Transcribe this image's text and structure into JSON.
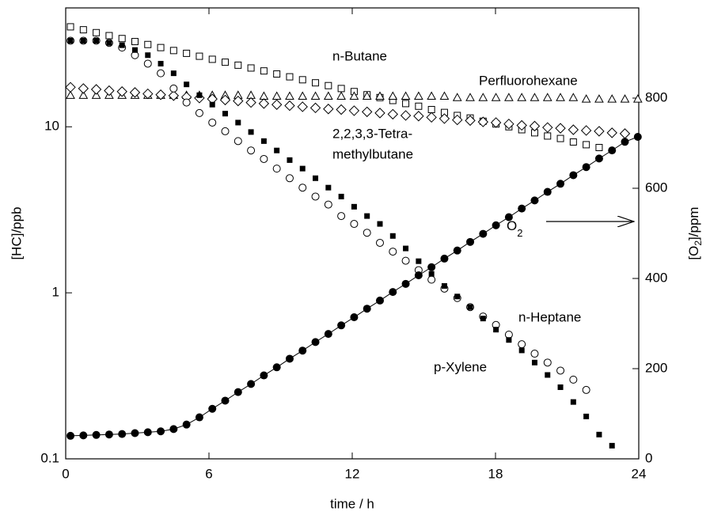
{
  "chart_data": {
    "type": "scatter",
    "x_label": "time / h",
    "y_label": "[HC]/ppb",
    "y2_label_parts": [
      "[O",
      "2",
      "]/ppm"
    ],
    "xlim": [
      0,
      24
    ],
    "xticks": [
      0,
      6,
      12,
      18,
      24
    ],
    "ylim": [
      0.1,
      52
    ],
    "yticks": [
      0.1,
      1,
      10
    ],
    "log_y": true,
    "y2lim": [
      0,
      1000
    ],
    "y2ticks": [
      0,
      200,
      400,
      600,
      800
    ],
    "x": [
      0.2,
      0.74,
      1.28,
      1.82,
      2.36,
      2.9,
      3.44,
      3.98,
      4.52,
      5.06,
      5.6,
      6.14,
      6.68,
      7.22,
      7.76,
      8.3,
      8.84,
      9.38,
      9.92,
      10.46,
      11,
      11.54,
      12.08,
      12.62,
      13.16,
      13.7,
      14.24,
      14.78,
      15.32,
      15.86,
      16.4,
      16.94,
      17.48,
      18.02,
      18.56,
      19.1,
      19.64,
      20.18,
      20.72,
      21.26,
      21.8,
      22.34,
      22.88,
      23.42,
      23.96
    ],
    "series": [
      {
        "name": "n-Butane",
        "color": "#000000",
        "marker": "square-open",
        "values": [
          40,
          38.4,
          36.9,
          35.4,
          34.0,
          32.6,
          31.3,
          30.0,
          28.8,
          27.7,
          26.6,
          25.5,
          24.5,
          23.5,
          22.6,
          21.7,
          20.8,
          20.0,
          19.2,
          18.4,
          17.7,
          17.0,
          16.3,
          15.6,
          15.0,
          14.4,
          13.8,
          13.3,
          12.7,
          12.2,
          11.7,
          11.3,
          10.8,
          10.4,
          10.0,
          9.6,
          9.2,
          8.8,
          8.5,
          8.1,
          7.8,
          7.5,
          null,
          null,
          null
        ]
      },
      {
        "name": "Perfluorohexane",
        "color": "#000000",
        "marker": "triangle-open",
        "values": [
          15.5,
          15.5,
          15.5,
          15.5,
          15.5,
          15.5,
          15.5,
          15.5,
          15.5,
          15.5,
          15.5,
          15.5,
          15.5,
          15.5,
          15.5,
          15.3,
          15.3,
          15.3,
          15.3,
          15.3,
          15.3,
          15.3,
          15.3,
          15.3,
          15.3,
          15.3,
          15.3,
          15.3,
          15.3,
          15.3,
          15.0,
          15.0,
          15.0,
          15.0,
          15.0,
          15.0,
          15.0,
          15.0,
          15.0,
          15.0,
          14.7,
          14.7,
          14.7,
          14.7,
          14.7
        ]
      },
      {
        "name_lines": [
          "2,2,3,3-Tetra-",
          "methylbutane"
        ],
        "color": "#000000",
        "marker": "diamond-open",
        "values": [
          17.3,
          17.0,
          16.8,
          16.5,
          16.3,
          16.1,
          15.8,
          15.6,
          15.4,
          15.1,
          14.9,
          14.7,
          14.5,
          14.3,
          14.0,
          13.8,
          13.6,
          13.4,
          13.2,
          13.0,
          12.8,
          12.7,
          12.5,
          12.3,
          12.1,
          11.9,
          11.7,
          11.6,
          11.4,
          11.2,
          11.0,
          10.9,
          10.7,
          10.6,
          10.4,
          10.2,
          10.1,
          9.9,
          9.8,
          9.6,
          9.5,
          9.4,
          9.2,
          9.1,
          null
        ]
      },
      {
        "name": "n-Heptane",
        "color": "#000000",
        "marker": "circle-open",
        "values": [
          33,
          33,
          33,
          32,
          30,
          27,
          24,
          21,
          17,
          14,
          12.1,
          10.6,
          9.4,
          8.2,
          7.2,
          6.4,
          5.6,
          4.9,
          4.3,
          3.8,
          3.4,
          2.9,
          2.6,
          2.3,
          2.0,
          1.77,
          1.56,
          1.37,
          1.2,
          1.06,
          0.93,
          0.82,
          0.72,
          0.64,
          0.56,
          0.49,
          0.43,
          0.38,
          0.34,
          0.3,
          0.26,
          null,
          null,
          null,
          null
        ]
      },
      {
        "name": "p-Xylene",
        "color": "#000000",
        "marker": "square-filled",
        "values": [
          33,
          33,
          33,
          32,
          31,
          29,
          27,
          24,
          21,
          18,
          15.5,
          13.6,
          12.0,
          10.6,
          9.3,
          8.2,
          7.2,
          6.3,
          5.6,
          4.9,
          4.3,
          3.8,
          3.3,
          2.9,
          2.6,
          2.2,
          1.85,
          1.55,
          1.3,
          1.1,
          0.95,
          0.82,
          0.7,
          0.6,
          0.52,
          0.45,
          0.38,
          0.32,
          0.27,
          0.22,
          0.18,
          0.14,
          0.12,
          null,
          null
        ]
      },
      {
        "name": "O",
        "name_sub": "2",
        "color": "#000000",
        "marker": "circle-filled",
        "axis": "y2",
        "line": true,
        "values": [
          51,
          52,
          53,
          54,
          55,
          57,
          59,
          61,
          66,
          76,
          92,
          111,
          129,
          148,
          166,
          185,
          203,
          222,
          240,
          259,
          277,
          296,
          314,
          333,
          351,
          370,
          388,
          407,
          425,
          444,
          462,
          481,
          499,
          518,
          536,
          555,
          573,
          592,
          610,
          629,
          647,
          666,
          684,
          703,
          714
        ]
      }
    ]
  }
}
